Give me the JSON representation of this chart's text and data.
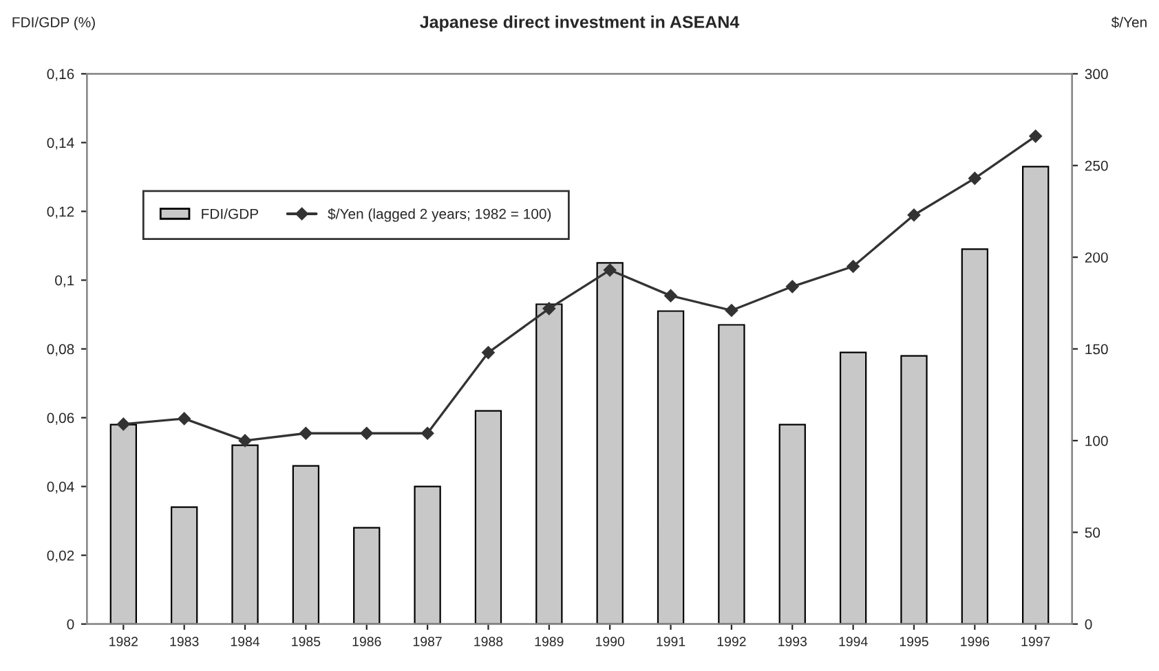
{
  "chart_data": {
    "type": "bar",
    "title": "Japanese direct investment in ASEAN4",
    "ylabel": "FDI/GDP (%)",
    "y2label": "$/Yen",
    "categories": [
      "1982",
      "1983",
      "1984",
      "1985",
      "1986",
      "1987",
      "1988",
      "1989",
      "1990",
      "1991",
      "1992",
      "1993",
      "1994",
      "1995",
      "1996",
      "1997"
    ],
    "series": [
      {
        "name": "FDI/GDP",
        "color": "#c8c8c8",
        "values": [
          0.058,
          0.034,
          0.052,
          0.046,
          0.028,
          0.04,
          0.062,
          0.093,
          0.105,
          0.091,
          0.087,
          0.058,
          0.079,
          0.078,
          0.109,
          0.133
        ]
      },
      {
        "name": "$/Yen (lagged 2 years; 1982 = 100)",
        "type": "line",
        "axis": "y2",
        "color": "#333333",
        "marker": "diamond",
        "values": [
          109,
          112,
          100,
          104,
          104,
          104,
          148,
          172,
          193,
          179,
          171,
          184,
          195,
          223,
          243,
          266
        ]
      }
    ],
    "ylim": [
      0,
      0.16
    ],
    "yticks": [
      0,
      {
        "value": 0.02,
        "label": "0,02"
      },
      {
        "value": 0.04,
        "label": "0,04"
      },
      {
        "value": 0.06,
        "label": "0,06"
      },
      {
        "value": 0.08,
        "label": "0,08"
      },
      {
        "value": 0.1,
        "label": "0,1"
      },
      {
        "value": 0.12,
        "label": "0,12"
      },
      {
        "value": 0.14,
        "label": "0,14"
      },
      {
        "value": 0.16,
        "label": "0,16"
      }
    ],
    "y2lim": [
      0,
      300
    ],
    "y2ticks": [
      0,
      50,
      100,
      150,
      200,
      250,
      300
    ],
    "legend": "top left",
    "grid": false
  }
}
